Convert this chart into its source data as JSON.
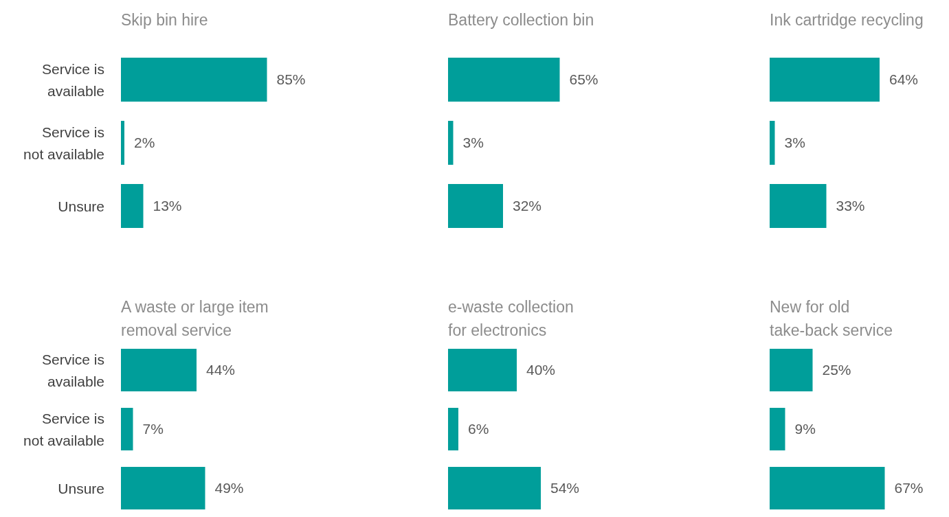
{
  "chart_data": [
    {
      "type": "bar",
      "orientation": "horizontal",
      "title": "Skip bin hire",
      "categories": [
        "Service is available",
        "Service is not available",
        "Unsure"
      ],
      "values": [
        85,
        2,
        13
      ],
      "color": "#009e9a",
      "value_labels": [
        "85%",
        "2%",
        "13%"
      ]
    },
    {
      "type": "bar",
      "orientation": "horizontal",
      "title": "Battery collection bin",
      "categories": [
        null,
        null,
        null
      ],
      "values": [
        65,
        3,
        32
      ],
      "color": "#009e9a",
      "value_labels": [
        "65%",
        "3%",
        "32%"
      ]
    },
    {
      "type": "bar",
      "orientation": "horizontal",
      "title": "Ink cartridge recycling",
      "categories": [
        null,
        null,
        null
      ],
      "values": [
        64,
        3,
        33
      ],
      "color": "#009e9a",
      "value_labels": [
        "64%",
        "3%",
        "33%"
      ]
    },
    {
      "type": "bar",
      "orientation": "horizontal",
      "title": "A waste or large item\nremoval service",
      "categories": [
        "Service is available",
        "Service is not available",
        "Unsure"
      ],
      "values": [
        44,
        7,
        49
      ],
      "color": "#009e9a",
      "value_labels": [
        "44%",
        "7%",
        "49%"
      ]
    },
    {
      "type": "bar",
      "orientation": "horizontal",
      "title": "e-waste collection\nfor electronics",
      "categories": [
        null,
        null,
        null
      ],
      "values": [
        40,
        6,
        54
      ],
      "color": "#009e9a",
      "value_labels": [
        "40%",
        "6%",
        "54%"
      ]
    },
    {
      "type": "bar",
      "orientation": "horizontal",
      "title": "New for old\ntake-back service",
      "categories": [
        null,
        null,
        null
      ],
      "values": [
        25,
        9,
        67
      ],
      "color": "#009e9a",
      "value_labels": [
        "25%",
        "9%",
        "67%"
      ]
    }
  ]
}
